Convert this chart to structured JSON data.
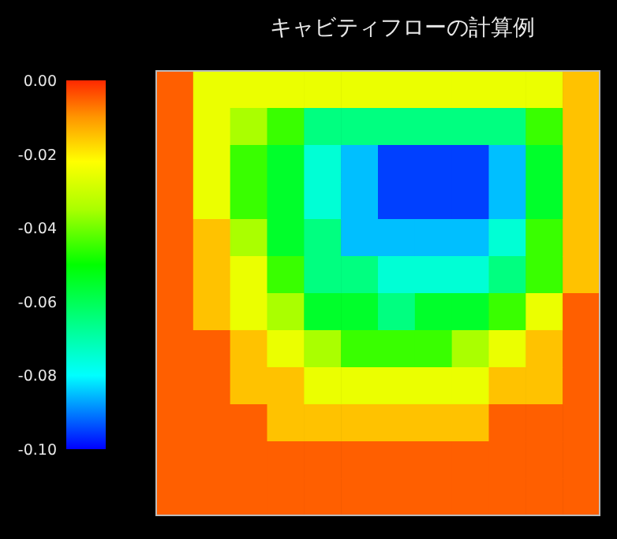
{
  "chart_data": {
    "type": "heatmap",
    "title": "キャビティフローの計算例",
    "categories": [
      null,
      null,
      null,
      null,
      null,
      null,
      null,
      null,
      null,
      null,
      null,
      null
    ],
    "y_categories": [
      null,
      null,
      null,
      null,
      null,
      null,
      null,
      null,
      null,
      null,
      null,
      null
    ],
    "clim": [
      -0.1,
      0
    ],
    "cticks": [
      {
        "value": 0,
        "label": "0.00"
      },
      {
        "value": -0.02,
        "label": "-0.02"
      },
      {
        "value": -0.04,
        "label": "-0.04"
      },
      {
        "value": -0.06,
        "label": "-0.06"
      },
      {
        "value": -0.08,
        "label": "-0.08"
      },
      {
        "value": -0.1,
        "label": "-0.10"
      }
    ],
    "cells": [
      [
        -0.005,
        -0.025,
        -0.025,
        -0.025,
        -0.025,
        -0.025,
        -0.025,
        -0.025,
        -0.025,
        -0.025,
        -0.025,
        -0.015
      ],
      [
        -0.005,
        -0.025,
        -0.035,
        -0.045,
        -0.065,
        -0.065,
        -0.065,
        -0.065,
        -0.065,
        -0.065,
        -0.045,
        -0.015
      ],
      [
        -0.005,
        -0.025,
        -0.045,
        -0.055,
        -0.075,
        -0.085,
        -0.095,
        -0.095,
        -0.095,
        -0.085,
        -0.055,
        -0.015
      ],
      [
        -0.005,
        -0.025,
        -0.045,
        -0.055,
        -0.075,
        -0.085,
        -0.095,
        -0.095,
        -0.095,
        -0.085,
        -0.055,
        -0.015
      ],
      [
        -0.005,
        -0.015,
        -0.035,
        -0.055,
        -0.065,
        -0.085,
        -0.085,
        -0.085,
        -0.085,
        -0.075,
        -0.045,
        -0.015
      ],
      [
        -0.005,
        -0.015,
        -0.025,
        -0.045,
        -0.065,
        -0.065,
        -0.075,
        -0.075,
        -0.075,
        -0.065,
        -0.045,
        -0.015
      ],
      [
        -0.005,
        -0.015,
        -0.025,
        -0.035,
        -0.055,
        -0.055,
        -0.065,
        -0.055,
        -0.055,
        -0.045,
        -0.025,
        -0.005
      ],
      [
        -0.005,
        -0.005,
        -0.015,
        -0.025,
        -0.035,
        -0.045,
        -0.045,
        -0.045,
        -0.035,
        -0.025,
        -0.015,
        -0.005
      ],
      [
        -0.005,
        -0.005,
        -0.015,
        -0.015,
        -0.025,
        -0.025,
        -0.025,
        -0.025,
        -0.025,
        -0.015,
        -0.015,
        -0.005
      ],
      [
        -0.005,
        -0.005,
        -0.005,
        -0.015,
        -0.015,
        -0.015,
        -0.015,
        -0.015,
        -0.015,
        -0.005,
        -0.005,
        -0.005
      ],
      [
        -0.005,
        -0.005,
        -0.005,
        -0.005,
        -0.005,
        -0.005,
        -0.005,
        -0.005,
        -0.005,
        -0.005,
        -0.005,
        -0.005
      ],
      [
        -0.005,
        -0.005,
        -0.005,
        -0.005,
        -0.005,
        -0.005,
        -0.005,
        -0.005,
        -0.005,
        -0.005,
        -0.005,
        -0.005
      ]
    ]
  }
}
